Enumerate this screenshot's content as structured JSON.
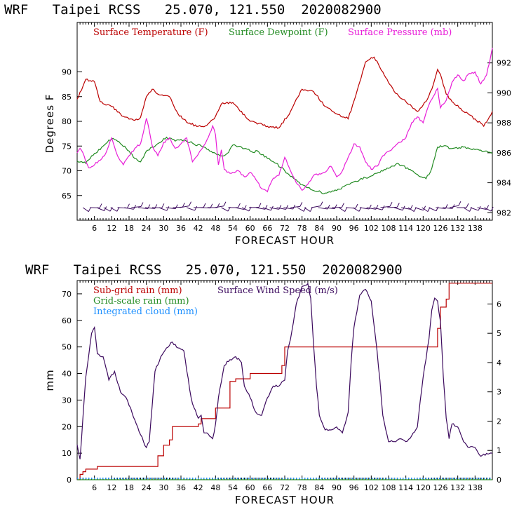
{
  "chart_data": [
    {
      "type": "line",
      "title": "WRF   Taipei RCSS   25.070, 121.550  2020082900",
      "xlabel": "FORECAST HOUR",
      "ylabel": "Degrees F",
      "xlim": [
        0,
        144
      ],
      "ylim": [
        60,
        100
      ],
      "y2lim": [
        981.5,
        994.7
      ],
      "x_ticks": [
        6,
        12,
        18,
        24,
        30,
        36,
        42,
        48,
        54,
        60,
        66,
        72,
        78,
        84,
        90,
        96,
        102,
        108,
        114,
        120,
        126,
        132,
        138
      ],
      "y_ticks": [
        65,
        70,
        75,
        80,
        85,
        90
      ],
      "y2_ticks": [
        982,
        984,
        986,
        988,
        990,
        992
      ],
      "series": [
        {
          "name": "Surface Temperature (F)",
          "color": "#bb0000",
          "axis": "left",
          "x": [
            0,
            3,
            6,
            8,
            12,
            16,
            20,
            22,
            24,
            26,
            28,
            32,
            35,
            38,
            42,
            45,
            48,
            50,
            54,
            56,
            60,
            66,
            70,
            74,
            78,
            82,
            86,
            90,
            94,
            97,
            100,
            103,
            106,
            110,
            114,
            118,
            121,
            123,
            125,
            126,
            128,
            130,
            134,
            138,
            141,
            144
          ],
          "values": [
            84.5,
            88.5,
            88,
            84,
            83,
            81,
            80.2,
            80.8,
            85,
            86.5,
            85.5,
            85,
            81.5,
            79.8,
            79,
            79.2,
            81,
            83.5,
            83.8,
            82.5,
            80,
            79,
            78.7,
            82,
            86.5,
            86,
            83,
            81.5,
            80.5,
            86,
            92,
            93,
            90,
            86,
            84,
            82,
            84,
            86.5,
            90.5,
            89.5,
            85.5,
            84,
            82,
            80.5,
            79,
            82
          ]
        },
        {
          "name": "Surface Dewpoint (F)",
          "color": "#228b22",
          "axis": "left",
          "x": [
            0,
            3,
            6,
            9,
            12,
            15,
            18,
            20,
            22,
            24,
            26,
            28,
            31,
            34,
            37,
            40,
            44,
            48,
            50,
            52,
            54,
            57,
            60,
            63,
            66,
            69,
            72,
            75,
            78,
            82,
            86,
            90,
            93,
            96,
            98,
            100,
            104,
            108,
            111,
            113,
            115,
            117,
            119,
            121,
            123,
            125,
            127,
            130,
            134,
            138,
            142,
            144
          ],
          "values": [
            72,
            71.5,
            73.5,
            75,
            76.5,
            75.5,
            74,
            72.5,
            71.8,
            74,
            74.8,
            75.5,
            76.8,
            76,
            76.2,
            75.6,
            74.8,
            73.5,
            73,
            73.5,
            75.2,
            74.8,
            74,
            73.8,
            72.5,
            71.5,
            70,
            68.5,
            67.2,
            66,
            65.5,
            66,
            67,
            67.8,
            68.2,
            68.6,
            69.5,
            70.5,
            71.5,
            71,
            70.3,
            69.6,
            68.8,
            68.4,
            70.5,
            74.8,
            75,
            74.5,
            74.8,
            74.3,
            74,
            73.5
          ]
        },
        {
          "name": "Surface Pressure (mb)",
          "color": "#e81ed8",
          "axis": "right",
          "x": [
            0,
            1,
            2,
            3,
            4,
            6,
            8,
            10,
            12,
            14,
            16,
            18,
            20,
            22,
            24,
            25,
            26,
            28,
            30,
            32,
            34,
            36,
            38,
            40,
            42,
            44,
            46,
            47,
            48,
            49,
            50,
            51,
            52,
            54,
            56,
            58,
            60,
            62,
            64,
            66,
            67,
            68,
            70,
            72,
            74,
            76,
            78,
            80,
            82,
            84,
            86,
            88,
            90,
            92,
            94,
            96,
            98,
            100,
            102,
            104,
            106,
            108,
            110,
            112,
            114,
            116,
            118,
            120,
            122,
            124,
            125,
            126,
            128,
            130,
            132,
            134,
            136,
            138,
            140,
            142,
            143,
            144
          ],
          "values": [
            986,
            986.3,
            986,
            985.4,
            985,
            985.2,
            985.5,
            986,
            987,
            985.8,
            985.2,
            985.8,
            986.3,
            986.6,
            988.3,
            987.5,
            986.5,
            985.8,
            986.7,
            987,
            986.3,
            986.6,
            987,
            985.4,
            985.9,
            986.5,
            987.3,
            987.8,
            987.2,
            985.2,
            986.2,
            984.9,
            984.7,
            984.7,
            984.8,
            984.4,
            984.7,
            984.2,
            983.6,
            983.4,
            983.9,
            984.3,
            984.5,
            985.7,
            984.8,
            984,
            983.5,
            983.9,
            984.5,
            984.6,
            984.7,
            985.1,
            984.4,
            984.8,
            985.7,
            986.6,
            986.4,
            985.4,
            984.9,
            985.1,
            985.8,
            986.1,
            986.4,
            986.7,
            987,
            988,
            988.4,
            988,
            989.2,
            989.9,
            990.3,
            989,
            989.5,
            990.7,
            991.2,
            990.8,
            991.3,
            991.4,
            990.6,
            991.2,
            992,
            993
          ]
        }
      ],
      "wind_barbs": "row of wind barbs along the bottom of the upper panel"
    },
    {
      "type": "line",
      "title": "WRF   Taipei RCSS   25.070, 121.550  2020082900",
      "xlabel": "FORECAST HOUR",
      "ylabel": "mm",
      "xlim": [
        0,
        144
      ],
      "ylim": [
        0,
        75
      ],
      "y2lim": [
        0,
        6.8
      ],
      "x_ticks": [
        6,
        12,
        18,
        24,
        30,
        36,
        42,
        48,
        54,
        60,
        66,
        72,
        78,
        84,
        90,
        96,
        102,
        108,
        114,
        120,
        126,
        132,
        138
      ],
      "y_ticks": [
        0,
        10,
        20,
        30,
        40,
        50,
        60,
        70
      ],
      "y2_ticks": [
        0,
        1,
        2,
        3,
        4,
        5,
        6
      ],
      "series": [
        {
          "name": "Sub-grid rain (mm)",
          "color": "#bb0000",
          "axis": "left",
          "x": [
            0,
            1,
            2,
            3,
            6,
            7,
            26,
            28,
            30,
            32,
            33,
            41,
            42,
            43,
            47,
            48,
            53,
            55,
            59,
            60,
            70,
            71,
            72,
            122,
            125,
            126,
            128,
            129,
            144
          ],
          "values": [
            0,
            2,
            3,
            4,
            4,
            5,
            5,
            9,
            13,
            15,
            20,
            20,
            21,
            23,
            23,
            27,
            37,
            38,
            38,
            40,
            40,
            43,
            50,
            50,
            57,
            65,
            68,
            74,
            74
          ]
        },
        {
          "name": "Grid-scale rain (mm)",
          "color": "#228b22",
          "axis": "left",
          "x": [
            0,
            144
          ],
          "values": [
            0,
            0
          ]
        },
        {
          "name": "Integrated cloud (mm)",
          "color": "#1e90ff",
          "axis": "left",
          "x": [
            0,
            144
          ],
          "values": [
            0.5,
            0.5
          ]
        },
        {
          "name": "Surface Wind Speed (m/s)",
          "color": "#3c0a5e",
          "axis": "right",
          "x": [
            0,
            1,
            3,
            5,
            6,
            7,
            9,
            11,
            13,
            15,
            17,
            19,
            21,
            23,
            24,
            25,
            26,
            27,
            29,
            31,
            33,
            35,
            37,
            39,
            40,
            42,
            43,
            44,
            45,
            47,
            48,
            49,
            51,
            53,
            55,
            57,
            58,
            60,
            62,
            64,
            66,
            68,
            70,
            72,
            73,
            74,
            76,
            78,
            80,
            81,
            82,
            83,
            84,
            86,
            88,
            90,
            92,
            94,
            95,
            96,
            98,
            100,
            102,
            104,
            105,
            106,
            108,
            110,
            112,
            114,
            116,
            118,
            119,
            120,
            122,
            123,
            124,
            125,
            126,
            127,
            128,
            129,
            130,
            132,
            134,
            136,
            138,
            140,
            142,
            144
          ],
          "values": [
            1.2,
            0.7,
            3.5,
            5,
            5.2,
            4.3,
            4.2,
            3.4,
            3.7,
            3,
            2.8,
            2.3,
            1.8,
            1.3,
            1.1,
            1.3,
            2.5,
            3.7,
            4.2,
            4.5,
            4.7,
            4.5,
            4.4,
            3.1,
            2.6,
            2.1,
            2.2,
            1.6,
            1.6,
            1.4,
            1.9,
            2.8,
            3.9,
            4.1,
            4.2,
            4,
            3.2,
            2.8,
            2.3,
            2.2,
            2.8,
            3.2,
            3.2,
            3.4,
            4.4,
            4.8,
            6,
            6.6,
            6.7,
            6.2,
            4.6,
            3.2,
            2.2,
            1.7,
            1.7,
            1.8,
            1.6,
            2.3,
            4,
            5.2,
            6.3,
            6.5,
            6.1,
            4.4,
            3.4,
            2.2,
            1.3,
            1.3,
            1.4,
            1.3,
            1.5,
            1.8,
            2.7,
            3.5,
            4.8,
            5.8,
            6.2,
            6.1,
            5.4,
            3.5,
            2.1,
            1.4,
            1.9,
            1.8,
            1.3,
            1.1,
            1.1,
            0.8,
            0.9,
            0.9
          ]
        }
      ]
    }
  ]
}
